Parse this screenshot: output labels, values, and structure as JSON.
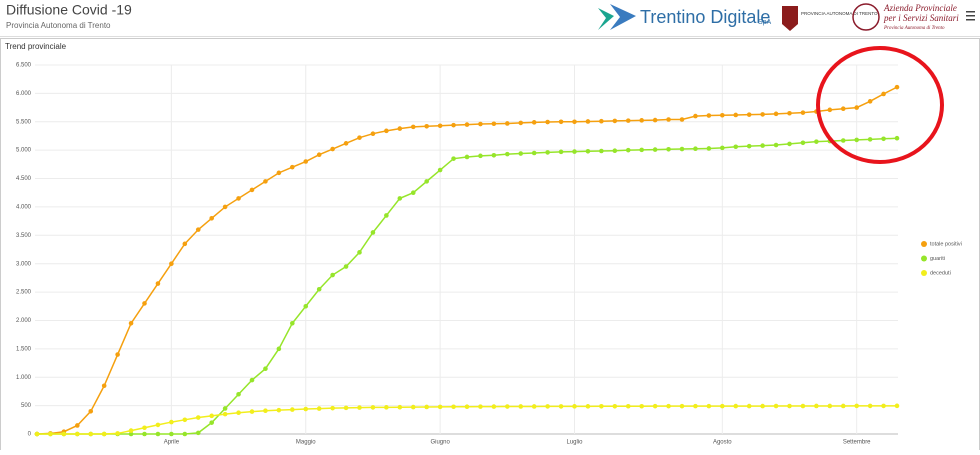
{
  "header": {
    "title": "Diffusione Covid -19",
    "subtitle": "Provincia Autonoma di Trento",
    "logos": {
      "brand": "Trentino Digitale",
      "brand_suffix": "SpA",
      "province": "PROVINCIA AUTONOMA DI TRENTO",
      "health_line1": "Azienda Provinciale",
      "health_line2": "per i Servizi Sanitari",
      "health_line3": "Provincia Autonoma di Trento"
    }
  },
  "panel_title": "Trend provinciale",
  "chart_data": {
    "type": "scatter-line",
    "categories": [
      null,
      null,
      null,
      null,
      null,
      null,
      null,
      null,
      null,
      null,
      "Aprile",
      null,
      null,
      null,
      null,
      null,
      null,
      null,
      null,
      null,
      "Maggio",
      null,
      null,
      null,
      null,
      null,
      null,
      null,
      null,
      null,
      "Giugno",
      null,
      null,
      null,
      null,
      null,
      null,
      null,
      null,
      null,
      "Luglio",
      null,
      null,
      null,
      null,
      null,
      null,
      null,
      null,
      null,
      null,
      "Agosto",
      null,
      null,
      null,
      null,
      null,
      null,
      null,
      null,
      null,
      "Settembre",
      null,
      null,
      null
    ],
    "series": [
      {
        "name": "totale positivi",
        "color": "#f5a00f",
        "values": [
          0,
          10,
          40,
          150,
          400,
          850,
          1400,
          1950,
          2300,
          2650,
          3000,
          3350,
          3600,
          3800,
          4000,
          4150,
          4300,
          4450,
          4600,
          4700,
          4800,
          4920,
          5020,
          5120,
          5220,
          5290,
          5340,
          5380,
          5410,
          5420,
          5430,
          5440,
          5450,
          5460,
          5465,
          5470,
          5480,
          5490,
          5495,
          5500,
          5500,
          5505,
          5510,
          5515,
          5520,
          5525,
          5530,
          5540,
          5540,
          5600,
          5610,
          5615,
          5620,
          5625,
          5630,
          5640,
          5650,
          5660,
          5680,
          5710,
          5730,
          5750,
          5860,
          5990,
          6110
        ]
      },
      {
        "name": "guariti",
        "color": "#96e52a",
        "values": [
          0,
          0,
          0,
          0,
          0,
          0,
          0,
          0,
          0,
          0,
          0,
          0,
          20,
          200,
          450,
          700,
          950,
          1150,
          1500,
          1950,
          2250,
          2550,
          2800,
          2950,
          3200,
          3550,
          3850,
          4150,
          4250,
          4450,
          4650,
          4850,
          4880,
          4900,
          4910,
          4930,
          4940,
          4950,
          4960,
          4970,
          4975,
          4980,
          4985,
          4990,
          5000,
          5005,
          5010,
          5015,
          5020,
          5025,
          5030,
          5040,
          5060,
          5070,
          5080,
          5090,
          5110,
          5130,
          5150,
          5160,
          5170,
          5180,
          5190,
          5200,
          5210
        ]
      },
      {
        "name": "deceduti",
        "color": "#f2ee1c",
        "values": [
          0,
          0,
          0,
          0,
          0,
          0,
          10,
          60,
          110,
          160,
          210,
          250,
          290,
          320,
          350,
          375,
          395,
          410,
          420,
          430,
          440,
          448,
          455,
          460,
          465,
          468,
          470,
          472,
          474,
          476,
          478,
          480,
          481,
          482,
          483,
          484,
          485,
          485,
          486,
          486,
          487,
          487,
          488,
          488,
          489,
          489,
          490,
          490,
          490,
          491,
          491,
          491,
          492,
          492,
          492,
          493,
          493,
          493,
          494,
          494,
          494,
          495,
          495,
          495,
          496
        ]
      }
    ],
    "ylim": [
      0,
      6500
    ],
    "yticks": [
      0,
      500,
      {
        "value": 1000,
        "label": "1.000"
      },
      {
        "value": 1500,
        "label": "1.500"
      },
      {
        "value": 2000,
        "label": "2.000"
      },
      {
        "value": 2500,
        "label": "2.500"
      },
      {
        "value": 3000,
        "label": "3.000"
      },
      {
        "value": 3500,
        "label": "3.500"
      },
      {
        "value": 4000,
        "label": "4.000"
      },
      {
        "value": 4500,
        "label": "4.500"
      },
      {
        "value": 5000,
        "label": "5.000"
      },
      {
        "value": 5500,
        "label": "5.500"
      },
      {
        "value": 6000,
        "label": "6.000"
      },
      {
        "value": 6500,
        "label": "6.500"
      }
    ],
    "grid": true,
    "legend": "right"
  }
}
